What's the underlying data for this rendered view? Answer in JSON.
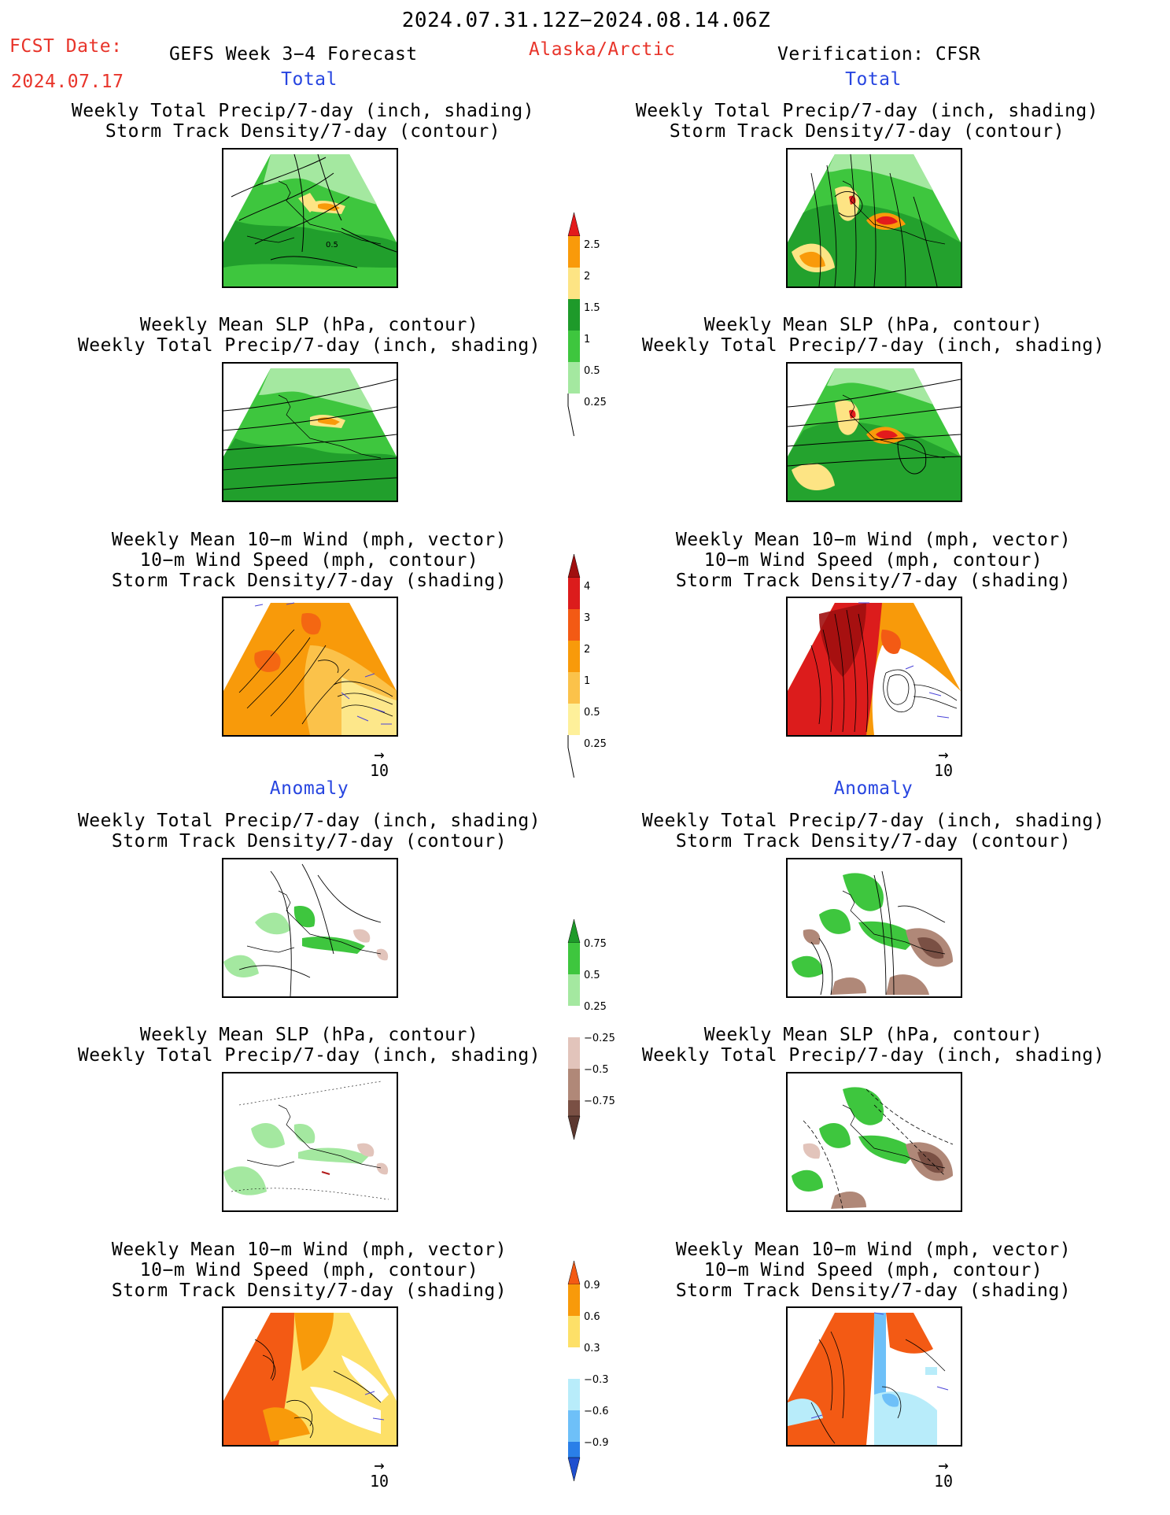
{
  "header": {
    "period": "2024.07.31.12Z−2024.08.14.06Z",
    "fcst_label": "FCST Date:",
    "fcst_date": "2024.07.17",
    "product": "GEFS Week 3−4 Forecast",
    "region": "Alaska/Arctic",
    "verification": "Verification: CFSR"
  },
  "sections": {
    "total": "Total",
    "anomaly": "Anomaly"
  },
  "panel_titles": {
    "precip_storm": [
      "Weekly Total Precip/7-day (inch, shading)",
      "Storm Track Density/7-day (contour)"
    ],
    "slp_precip": [
      "Weekly Mean SLP (hPa, contour)",
      "Weekly Total Precip/7-day (inch, shading)"
    ],
    "wind_storm": [
      "Weekly Mean 10−m Wind (mph, vector)",
      "10−m Wind Speed (mph, contour)",
      "Storm Track Density/7-day (shading)"
    ]
  },
  "map_labels": {
    "contour_05": "0.5"
  },
  "vector_reference": "10",
  "colorbars": {
    "precip_total": {
      "ticks": [
        "2.5",
        "2",
        "1.5",
        "1",
        "0.5",
        "0.25"
      ],
      "colors": [
        "#e31a1c",
        "#f99a0a",
        "#fde484",
        "#1e9a2a",
        "#3ec63e",
        "#a4e8a0"
      ]
    },
    "storm_total": {
      "ticks": [
        "4",
        "3",
        "2",
        "1",
        "0.5",
        "0.25"
      ],
      "colors": [
        "#a00f0f",
        "#dc1c1c",
        "#f35a14",
        "#f89a0a",
        "#fbc24a",
        "#fef09a"
      ]
    },
    "precip_anom": {
      "ticks": [
        "0.75",
        "0.5",
        "0.25",
        "−0.25",
        "−0.5",
        "−0.75"
      ],
      "colors": [
        "#1e9a2a",
        "#3ec63e",
        "#a4e8a0",
        "#ffffff",
        "#e2c4bb",
        "#b08878",
        "#7a5044",
        "#5c3830"
      ]
    },
    "storm_anom": {
      "ticks": [
        "0.9",
        "0.6",
        "0.3",
        "−0.3",
        "−0.6",
        "−0.9"
      ],
      "colors": [
        "#f35a14",
        "#f89a0a",
        "#fde068",
        "#ffffff",
        "#b8ecfa",
        "#6ec0f8",
        "#2a7fe8",
        "#1f4fcf"
      ]
    }
  }
}
